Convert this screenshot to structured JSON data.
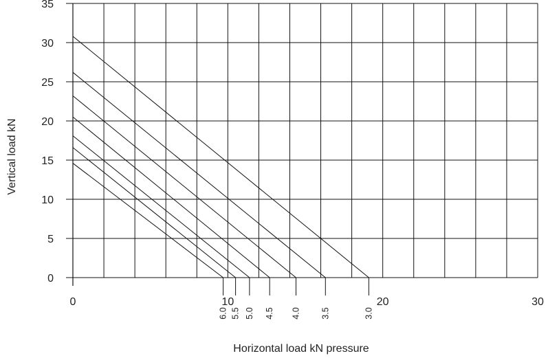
{
  "chart_data": {
    "type": "line",
    "title": "",
    "xlabel": "Horizontal load kN pressure",
    "ylabel": "Vertical load kN",
    "xlim": [
      0,
      30
    ],
    "ylim": [
      0,
      35
    ],
    "x_ticks": [
      0,
      10,
      20,
      30
    ],
    "y_ticks": [
      0,
      5,
      10,
      15,
      20,
      25,
      30,
      35
    ],
    "x_grid_step": 2,
    "grid": true,
    "series": [
      {
        "name": "3.0",
        "x": [
          0,
          19.1
        ],
        "y": [
          30.8,
          0
        ]
      },
      {
        "name": "3.5",
        "x": [
          0,
          16.3
        ],
        "y": [
          26.2,
          0
        ]
      },
      {
        "name": "4.0",
        "x": [
          0,
          14.4
        ],
        "y": [
          23.2,
          0
        ]
      },
      {
        "name": "4.5",
        "x": [
          0,
          12.7
        ],
        "y": [
          20.5,
          0
        ]
      },
      {
        "name": "5.0",
        "x": [
          0,
          11.4
        ],
        "y": [
          18.1,
          0
        ]
      },
      {
        "name": "5.5",
        "x": [
          0,
          10.5
        ],
        "y": [
          16.6,
          0
        ]
      },
      {
        "name": "6.0",
        "x": [
          0,
          9.7
        ],
        "y": [
          14.6,
          0
        ]
      }
    ]
  }
}
